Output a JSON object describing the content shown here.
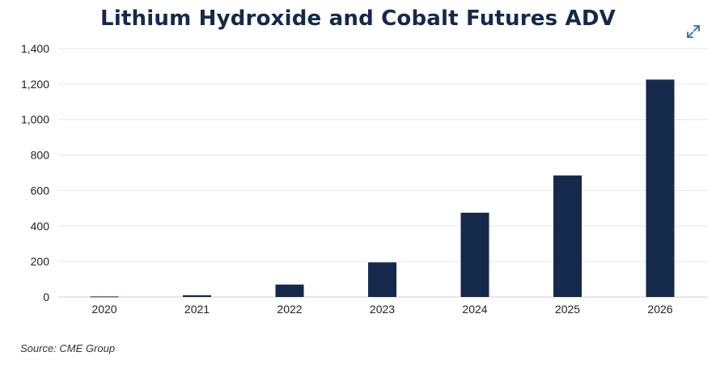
{
  "page": {
    "title": "Lithium Hydroxide and Cobalt Futures ADV",
    "source": "Source: CME Group",
    "expand_icon": "expand-arrows-icon",
    "accent_color": "#14294b",
    "bar_color": "#14294b",
    "grid_color": "#e6e6e6"
  },
  "chart_data": {
    "type": "bar",
    "title": "Lithium Hydroxide and Cobalt Futures ADV",
    "xlabel": "",
    "ylabel": "",
    "categories": [
      "2020",
      "2021",
      "2022",
      "2023",
      "2024",
      "2025",
      "2026"
    ],
    "values": [
      3,
      10,
      70,
      195,
      475,
      685,
      1225
    ],
    "ylim": [
      0,
      1400
    ],
    "yticks": [
      0,
      200,
      400,
      600,
      800,
      1000,
      1200,
      1400
    ],
    "ytick_labels": [
      "0",
      "200",
      "400",
      "600",
      "800",
      "1,000",
      "1,200",
      "1,400"
    ],
    "grid": true,
    "legend": "none"
  }
}
